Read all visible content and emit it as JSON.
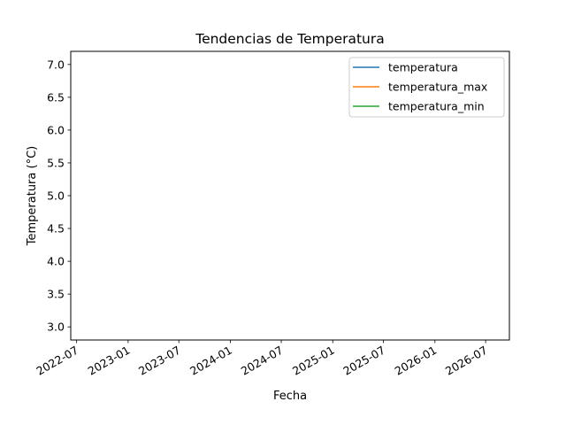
{
  "chart_data": {
    "type": "line",
    "title": "Tendencias de Temperatura",
    "xlabel": "Fecha",
    "ylabel": "Temperatura (°C)",
    "x_axis_type": "date",
    "xlim": [
      "2022-06-10",
      "2026-09-24"
    ],
    "ylim": [
      2.8,
      7.2
    ],
    "xticks": [
      "2022-07",
      "2023-01",
      "2023-07",
      "2024-01",
      "2024-07",
      "2025-01",
      "2025-07",
      "2026-01",
      "2026-07"
    ],
    "yticks": [
      3.0,
      3.5,
      4.0,
      4.5,
      5.0,
      5.5,
      6.0,
      6.5,
      7.0
    ],
    "ytick_labels": [
      "3.0",
      "3.5",
      "4.0",
      "4.5",
      "5.0",
      "5.5",
      "6.0",
      "6.5",
      "7.0"
    ],
    "series": [
      {
        "name": "temperatura",
        "color": "#1f77b4",
        "x": [],
        "y": []
      },
      {
        "name": "temperatura_max",
        "color": "#ff7f0e",
        "x": [],
        "y": []
      },
      {
        "name": "temperatura_min",
        "color": "#2ca02c",
        "x": [],
        "y": []
      }
    ],
    "legend": "top-right",
    "grid": false
  }
}
